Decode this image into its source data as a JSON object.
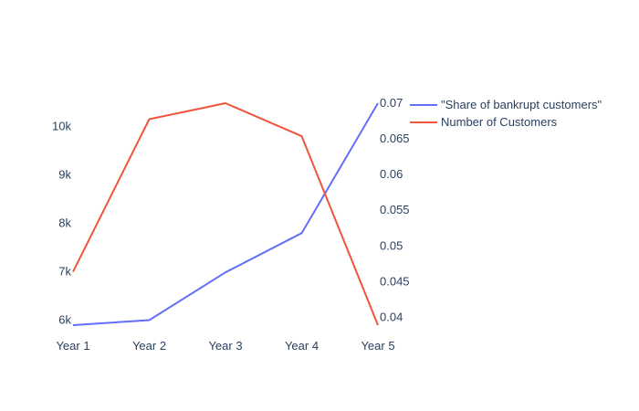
{
  "chart_data": {
    "type": "line",
    "categories": [
      "Year 1",
      "Year 2",
      "Year 3",
      "Year 4",
      "Year 5"
    ],
    "series": [
      {
        "name": "\"Share of bankrupt customers\"",
        "axis": "right",
        "color": "#636efa",
        "values": [
          0.0389,
          0.0396,
          0.0463,
          0.0518,
          0.07
        ]
      },
      {
        "name": "Number of Customers",
        "axis": "left",
        "color": "#ef553b",
        "values": [
          7000,
          10150,
          10480,
          9800,
          5900
        ]
      }
    ],
    "y_left": {
      "range": [
        5900,
        10480
      ],
      "ticks": [
        6000,
        7000,
        8000,
        9000,
        10000
      ],
      "tick_labels": [
        "6k",
        "7k",
        "8k",
        "9k",
        "10k"
      ]
    },
    "y_right": {
      "range": [
        0.0389,
        0.07
      ],
      "ticks": [
        0.04,
        0.045,
        0.05,
        0.055,
        0.06,
        0.065,
        0.07
      ],
      "tick_labels": [
        "0.04",
        "0.045",
        "0.05",
        "0.055",
        "0.06",
        "0.065",
        "0.07"
      ]
    },
    "grid": false,
    "legend_position": "top-right",
    "title": "",
    "xlabel": "",
    "ylabel": ""
  }
}
